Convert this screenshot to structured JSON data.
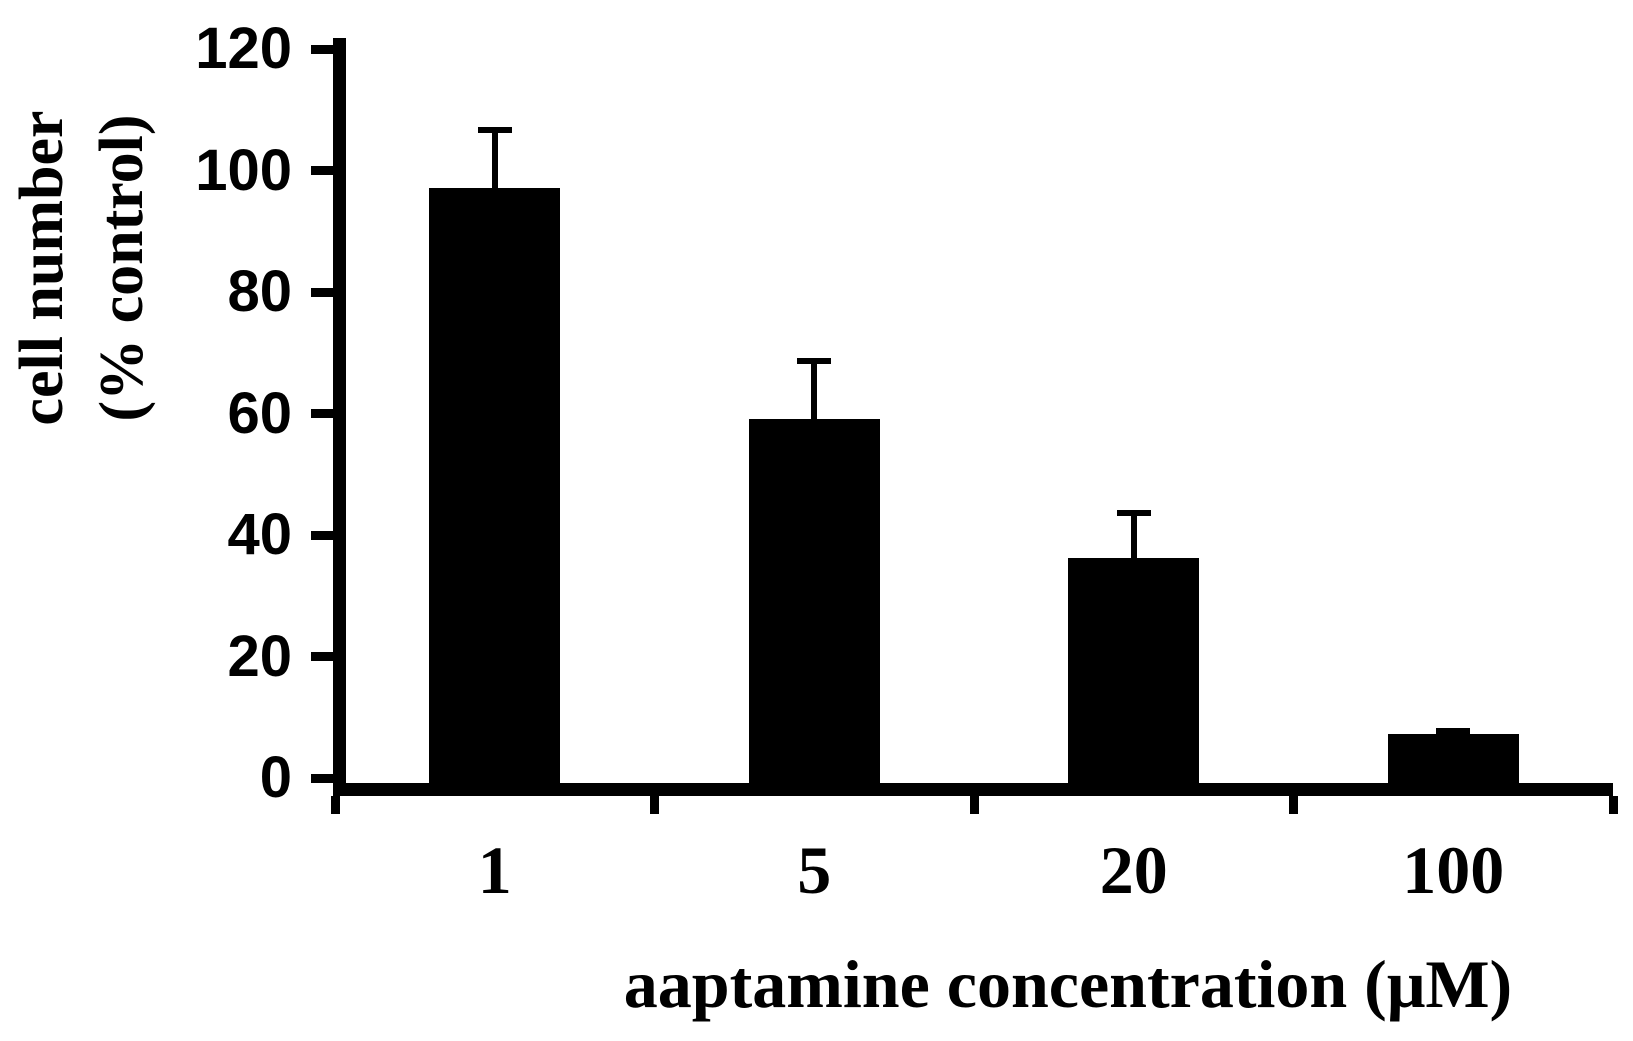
{
  "chart_data": {
    "type": "bar",
    "title": "",
    "xlabel": "aaptamine concentration (μM)",
    "ylabel_lines": [
      "cell number",
      "(% control)"
    ],
    "ylabel": "cell number (% control)",
    "categories": [
      "1",
      "5",
      "20",
      "100"
    ],
    "values": [
      98,
      60,
      37,
      8
    ],
    "errors_plus": [
      10,
      10,
      8,
      1
    ],
    "yticks": [
      0,
      20,
      40,
      60,
      80,
      100,
      120
    ],
    "ylim": [
      0,
      120
    ],
    "bar_color": "#000000",
    "axis_color": "#000000",
    "background_color": "#ffffff",
    "error_direction": "up",
    "grid": false,
    "legend": false
  }
}
